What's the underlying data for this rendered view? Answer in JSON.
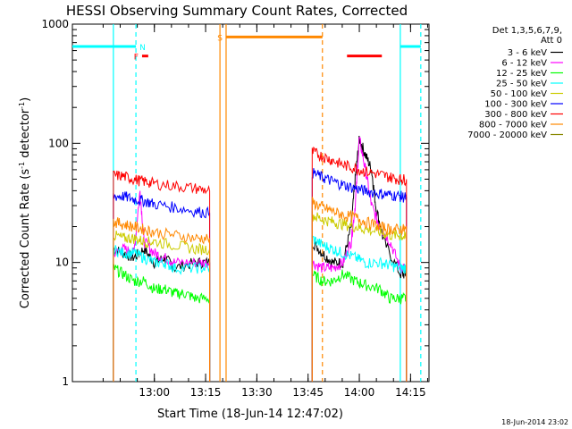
{
  "chart_data": {
    "type": "line",
    "title": "HESSI Observing Summary Count Rates, Corrected",
    "xlabel": "Start Time (18-Jun-14 12:47:02)",
    "ylabel_main": "Corrected Count Rate (s",
    "ylabel_sup1": "-1",
    "ylabel_mid": " detector",
    "ylabel_sup2": "-1",
    "ylabel_end": ")",
    "ylabel": "Corrected Count Rate (s^-1 detector^-1)",
    "yscale": "log",
    "ylim": [
      1,
      1000
    ],
    "xlim_minutes": [
      12.6,
      14.34
    ],
    "yticks": [
      {
        "value": 1,
        "label": "1"
      },
      {
        "value": 10,
        "label": "10"
      },
      {
        "value": 100,
        "label": "100"
      },
      {
        "value": 1000,
        "label": "1000"
      }
    ],
    "xticks": [
      {
        "value": 13.0,
        "label": "13:00"
      },
      {
        "value": 13.25,
        "label": "13:15"
      },
      {
        "value": 13.5,
        "label": "13:30"
      },
      {
        "value": 13.75,
        "label": "13:45"
      },
      {
        "value": 14.0,
        "label": "14:00"
      },
      {
        "value": 14.25,
        "label": "14:15"
      }
    ],
    "legend_header": [
      "Det 1,3,5,6,7,9,",
      "Att 0"
    ],
    "legend": [
      {
        "label": "3 - 6 keV",
        "color": "#000000"
      },
      {
        "label": "6 - 12 keV",
        "color": "#ff00ff"
      },
      {
        "label": "12 - 25 keV",
        "color": "#00ff00"
      },
      {
        "label": "25 - 50 keV",
        "color": "#00ffff"
      },
      {
        "label": "50 - 100 keV",
        "color": "#cccc00"
      },
      {
        "label": "100 - 300 keV",
        "color": "#0000ff"
      },
      {
        "label": "300 - 800 keV",
        "color": "#ff0000"
      },
      {
        "label": "800 - 7000 keV",
        "color": "#ff8800"
      },
      {
        "label": "7000 - 20000 keV",
        "color": "#888800"
      }
    ],
    "series": [
      {
        "name": "3 - 6 keV",
        "color": "#000000",
        "segments": [
          {
            "x": [
              12.8,
              12.85,
              12.9,
              12.95,
              13.0,
              13.05,
              13.1,
              13.2,
              13.27
            ],
            "y": [
              13,
              12,
              11,
              13,
              10,
              11,
              9,
              10,
              10
            ]
          },
          {
            "x": [
              13.77,
              13.82,
              13.87,
              13.92,
              13.96,
              13.98,
              14.0,
              14.03,
              14.06,
              14.08,
              14.12,
              14.2,
              14.23
            ],
            "y": [
              15,
              12,
              10,
              10,
              20,
              50,
              110,
              80,
              60,
              30,
              15,
              8,
              8
            ]
          }
        ]
      },
      {
        "name": "6 - 12 keV",
        "color": "#ff00ff",
        "segments": [
          {
            "x": [
              12.8,
              12.85,
              12.9,
              12.93,
              12.95,
              13.0,
              13.05,
              13.1,
              13.2,
              13.27
            ],
            "y": [
              12,
              13,
              12,
              40,
              15,
              12,
              11,
              10,
              10,
              10
            ]
          },
          {
            "x": [
              13.77,
              13.82,
              13.87,
              13.92,
              13.96,
              13.98,
              14.0,
              14.03,
              14.06,
              14.1,
              14.15,
              14.2,
              14.23
            ],
            "y": [
              10,
              9,
              9,
              10,
              15,
              30,
              110,
              60,
              30,
              20,
              15,
              9,
              9
            ]
          }
        ]
      },
      {
        "name": "12 - 25 keV",
        "color": "#00ff00",
        "segments": [
          {
            "x": [
              12.8,
              12.85,
              12.9,
              12.95,
              13.0,
              13.05,
              13.1,
              13.15,
              13.2,
              13.27
            ],
            "y": [
              9,
              8,
              7,
              7,
              6,
              6,
              5.5,
              5.5,
              5,
              5
            ]
          },
          {
            "x": [
              13.77,
              13.82,
              13.87,
              13.92,
              13.98,
              14.03,
              14.1,
              14.15,
              14.2,
              14.23
            ],
            "y": [
              8,
              7,
              7,
              8,
              7,
              6.5,
              6,
              5,
              5,
              5
            ]
          }
        ]
      },
      {
        "name": "25 - 50 keV",
        "color": "#00ffff",
        "segments": [
          {
            "x": [
              12.8,
              12.85,
              12.9,
              12.95,
              13.0,
              13.05,
              13.1,
              13.2,
              13.27
            ],
            "y": [
              13,
              12,
              12,
              11,
              10,
              10,
              9,
              9,
              9
            ]
          },
          {
            "x": [
              13.77,
              13.82,
              13.87,
              13.92,
              13.98,
              14.03,
              14.1,
              14.15,
              14.2,
              14.23
            ],
            "y": [
              16,
              14,
              13,
              12,
              11,
              10,
              10,
              9.5,
              9,
              9
            ]
          }
        ]
      },
      {
        "name": "50 - 100 keV",
        "color": "#cccc00",
        "segments": [
          {
            "x": [
              12.8,
              12.85,
              12.9,
              12.95,
              13.0,
              13.1,
              13.2,
              13.27
            ],
            "y": [
              17,
              16,
              16,
              15,
              15,
              14,
              13,
              13
            ]
          },
          {
            "x": [
              13.77,
              13.82,
              13.87,
              13.92,
              13.98,
              14.03,
              14.1,
              14.15,
              14.2,
              14.23
            ],
            "y": [
              25,
              23,
              22,
              21,
              20,
              19,
              18,
              17,
              17,
              16
            ]
          }
        ]
      },
      {
        "name": "100 - 300 keV",
        "color": "#0000ff",
        "segments": [
          {
            "x": [
              12.8,
              12.85,
              12.9,
              12.95,
              13.0,
              13.1,
              13.2,
              13.27
            ],
            "y": [
              36,
              36,
              34,
              33,
              31,
              29,
              27,
              26
            ]
          },
          {
            "x": [
              13.77,
              13.82,
              13.87,
              13.92,
              13.98,
              14.03,
              14.1,
              14.15,
              14.2,
              14.23
            ],
            "y": [
              57,
              52,
              48,
              45,
              42,
              40,
              38,
              37,
              36,
              35
            ]
          }
        ]
      },
      {
        "name": "300 - 800 keV",
        "color": "#ff0000",
        "segments": [
          {
            "x": [
              12.8,
              12.85,
              12.9,
              12.95,
              13.0,
              13.1,
              13.2,
              13.27
            ],
            "y": [
              54,
              53,
              50,
              48,
              46,
              44,
              42,
              40
            ]
          },
          {
            "x": [
              13.77,
              13.82,
              13.87,
              13.92,
              13.98,
              14.03,
              14.1,
              14.15,
              14.2,
              14.23
            ],
            "y": [
              85,
              78,
              72,
              66,
              62,
              58,
              55,
              52,
              50,
              50
            ]
          }
        ]
      },
      {
        "name": "800 - 7000 keV",
        "color": "#ff8800",
        "segments": [
          {
            "x": [
              12.8,
              12.85,
              12.9,
              12.95,
              13.0,
              13.1,
              13.2,
              13.27
            ],
            "y": [
              22,
              21,
              20,
              19,
              18,
              17,
              16,
              16
            ]
          },
          {
            "x": [
              13.77,
              13.82,
              13.87,
              13.92,
              13.98,
              14.03,
              14.1,
              14.15,
              14.2,
              14.23
            ],
            "y": [
              32,
              29,
              27,
              25,
              24,
              22,
              20,
              19,
              19,
              19
            ]
          }
        ]
      }
    ],
    "vertical_markers": [
      {
        "x": 12.8,
        "color": "#00ffff",
        "style": "solid"
      },
      {
        "x": 12.91,
        "color": "#00ffff",
        "style": "dashed"
      },
      {
        "x": 13.32,
        "color": "#ff8800",
        "style": "solid"
      },
      {
        "x": 13.35,
        "color": "#ff8800",
        "style": "solid"
      },
      {
        "x": 13.82,
        "color": "#ff8800",
        "style": "dashed"
      },
      {
        "x": 14.2,
        "color": "#00ffff",
        "style": "solid"
      },
      {
        "x": 14.3,
        "color": "#00ffff",
        "style": "dashed"
      }
    ],
    "flag_bars": [
      {
        "label": "",
        "color": "#00ffff",
        "x0": 12.6,
        "x1": 12.91,
        "y": 650
      },
      {
        "label": "N",
        "color": "#00ffff",
        "x0": 12.91,
        "x1": 12.91,
        "y": 650
      },
      {
        "label": "F",
        "color": "#ff0000",
        "x0": 12.94,
        "x1": 12.97,
        "y": 540
      },
      {
        "label": "S",
        "color": "#ff8800",
        "x0": 13.35,
        "x1": 13.82,
        "y": 780
      },
      {
        "label": "",
        "color": "#ff0000",
        "x0": 13.94,
        "x1": 14.11,
        "y": 540
      },
      {
        "label": "",
        "color": "#00ffff",
        "x0": 14.2,
        "x1": 14.3,
        "y": 650
      }
    ],
    "footer_stamp": "18-Jun-2014 23:02"
  }
}
